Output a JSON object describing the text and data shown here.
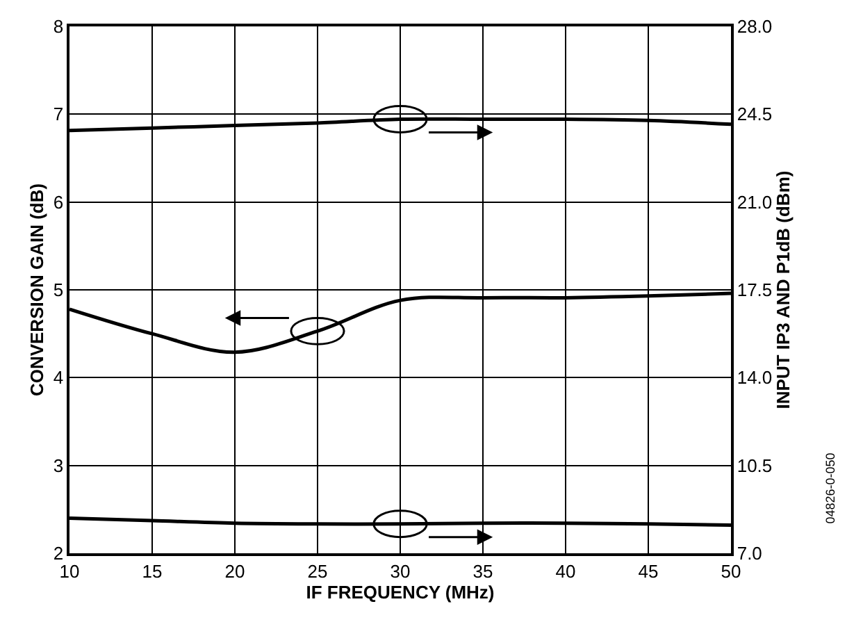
{
  "chart_data": {
    "type": "line",
    "xlabel": "IF FREQUENCY (MHz)",
    "ylabel": "CONVERSION GAIN (dB)",
    "y2label": "INPUT IP3 AND P1dB (dBm)",
    "xlim": [
      10,
      50
    ],
    "xticks": [
      10,
      15,
      20,
      25,
      30,
      35,
      40,
      45,
      50
    ],
    "ylim": [
      2,
      8
    ],
    "yticks": [
      2,
      3,
      4,
      5,
      6,
      7,
      8
    ],
    "y2lim": [
      7,
      28
    ],
    "y2ticks": [
      {
        "value": 7,
        "label": "7.0"
      },
      {
        "value": 10.5,
        "label": "10.5"
      },
      {
        "value": 14,
        "label": "14.0"
      },
      {
        "value": 17.5,
        "label": "17.5"
      },
      {
        "value": 21,
        "label": "21.0"
      },
      {
        "value": 24.5,
        "label": "24.5"
      },
      {
        "value": 28,
        "label": "28.0"
      }
    ],
    "grid": true,
    "x": [
      10,
      15,
      20,
      25,
      30,
      35,
      40,
      45,
      50
    ],
    "series": [
      {
        "color": "#000000",
        "axis": "y2",
        "values": [
          23.85,
          23.95,
          24.05,
          24.15,
          24.3,
          24.3,
          24.3,
          24.25,
          24.1
        ]
      },
      {
        "color": "#000000",
        "values": [
          4.78,
          4.5,
          4.29,
          4.53,
          4.88,
          4.91,
          4.91,
          4.93,
          4.96
        ]
      },
      {
        "color": "#000000",
        "axis": "y2",
        "values": [
          8.4,
          8.3,
          8.2,
          8.17,
          8.17,
          8.2,
          8.2,
          8.17,
          8.12
        ]
      }
    ],
    "annotations": [
      "04826-0-050"
    ]
  }
}
